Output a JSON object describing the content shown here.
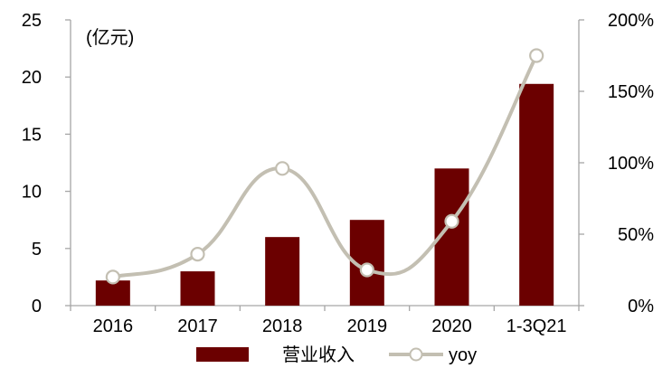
{
  "chart_data": {
    "type": "bar",
    "categories": [
      "2016",
      "2017",
      "2018",
      "2019",
      "2020",
      "1-3Q21"
    ],
    "unit_label": "(亿元)",
    "y_left": {
      "min": 0,
      "max": 25,
      "ticks": [
        "0",
        "5",
        "10",
        "15",
        "20",
        "25"
      ]
    },
    "y_right": {
      "min": 0,
      "max": 200,
      "ticks": [
        "0%",
        "50%",
        "100%",
        "150%",
        "200%"
      ]
    },
    "grid": false,
    "legend_position": "bottom",
    "series": [
      {
        "name": "营业收入",
        "type": "bar",
        "axis": "left",
        "color": "#6b0000",
        "values": [
          2.2,
          3.0,
          6.0,
          7.5,
          12.0,
          19.4
        ]
      },
      {
        "name": "yoy",
        "type": "line",
        "axis": "right",
        "smooth": true,
        "color": "#c3bfb2",
        "marker_fill": "#ffffff",
        "values": [
          20,
          36,
          96,
          25,
          59,
          175
        ]
      }
    ]
  }
}
